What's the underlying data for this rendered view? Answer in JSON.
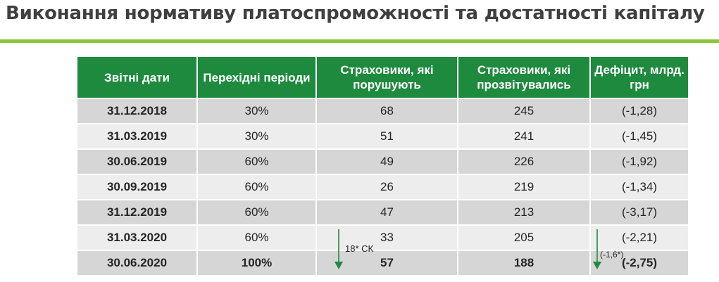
{
  "page": {
    "title": "Виконання нормативу платоспроможності та достатності капіталу"
  },
  "colors": {
    "header_bg": "#1e8a3e",
    "rule": "#8cc63f",
    "row_dark": "#d6d6d6",
    "row_light": "#ededed",
    "arrow": "#1e8a3e"
  },
  "table": {
    "headers": [
      "Звітні дати",
      "Перехідні періоди",
      "Страховики, які порушують",
      "Страховики, які прозвітувались",
      "Дефіцит, млрд. грн"
    ],
    "rows": [
      [
        "31.12.2018",
        "30%",
        "68",
        "245",
        "(-1,28)"
      ],
      [
        "31.03.2019",
        "30%",
        "51",
        "241",
        "(-1,45)"
      ],
      [
        "30.06.2019",
        "60%",
        "49",
        "226",
        "(-1,92)"
      ],
      [
        "30.09.2019",
        "60%",
        "26",
        "219",
        "(-1,34)"
      ],
      [
        "31.12.2019",
        "60%",
        "47",
        "213",
        "(-3,17)"
      ],
      [
        "31.03.2020",
        "60%",
        "33",
        "205",
        "(-2,21)"
      ],
      [
        "30.06.2020",
        "100%",
        "57",
        "188",
        "(-2,75)"
      ]
    ]
  },
  "annotations": {
    "violators_note": "18* СК",
    "deficit_note": "(-1,6*)",
    "arrow_icon": "down-arrow-icon"
  }
}
